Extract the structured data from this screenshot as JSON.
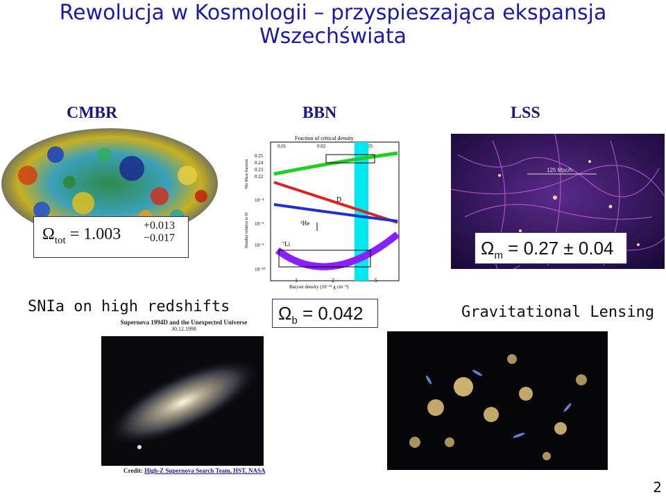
{
  "slide": {
    "title_line1": "Rewolucja w Kosmologii  – przyspieszająca ekspansja",
    "title_line2": "Wszechświata",
    "page_number": "2"
  },
  "panels": {
    "cmbr": {
      "label": "CMBR",
      "formula_lhs": "Ω",
      "formula_sub": "tot",
      "formula_main": "= 1.003",
      "formula_sup": "+0.013",
      "formula_inf": "−0.017"
    },
    "bbn": {
      "label": "BBN",
      "plot_top_label": "Fraction of critical density",
      "top_ticks": [
        "0.01",
        "0.02",
        "0.05"
      ],
      "x_label": "Baryon density (10⁻³¹ g cm⁻³)",
      "x_ticks": [
        "1",
        "2",
        "5"
      ],
      "y_label_top": "⁴He Mass fraction",
      "y_label_bottom": "Number relative to H",
      "y_ticks_top": [
        "0.25",
        "0.24",
        "0.23",
        "0.22"
      ],
      "y_ticks_bottom": [
        "10⁻⁴",
        "10⁻⁵",
        "10⁻⁹",
        "10⁻¹⁰"
      ],
      "curve_labels": [
        "D",
        "³He",
        "⁷Li"
      ],
      "omega_symbol": "Ω",
      "omega_sub": "b",
      "omega_value": " = 0.042"
    },
    "lss": {
      "label": "LSS",
      "scale_label": "125 Mpc/h",
      "omega_symbol": "Ω",
      "omega_sub": "m",
      "omega_value": " = 0.27 ± 0.04"
    },
    "snia": {
      "label": "SNIa on high redshifts",
      "img_title": "Supernova 1994D and the Unexpected Universe",
      "img_date": "30.12.1998",
      "credit_prefix": "Credit: ",
      "credit_text": "High-Z Supernova Search Team, HST, NASA"
    },
    "lensing": {
      "label": "Gravitational Lensing"
    }
  }
}
